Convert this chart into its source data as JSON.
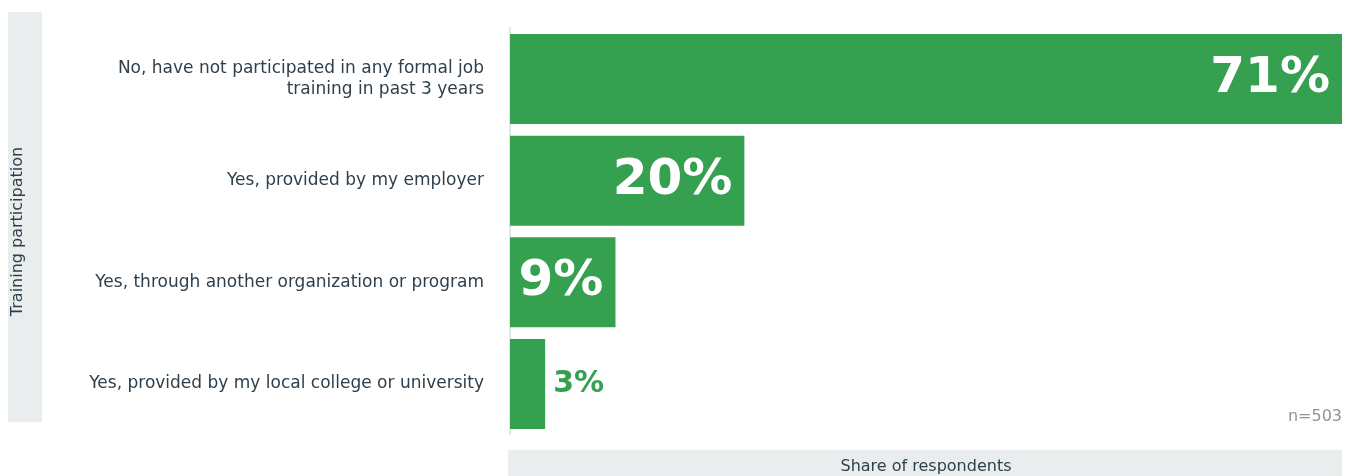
{
  "chart_data": {
    "type": "bar",
    "orientation": "horizontal",
    "relative": false,
    "ylabel": "Training participation",
    "xlabel": "Share of respondents",
    "categories": [
      "No, have not participated in any formal job training in past 3 years",
      "Yes, provided by my employer",
      "Yes, through another organization or program",
      "Yes, provided by my local college or university"
    ],
    "values": [
      71,
      20,
      9,
      3
    ],
    "color": "#35a150",
    "value_labels": [
      "71%",
      "20%",
      "9%",
      "3%"
    ],
    "annotations": [
      "n=503"
    ],
    "grid": false,
    "legend": false,
    "tick_labels": "y"
  }
}
